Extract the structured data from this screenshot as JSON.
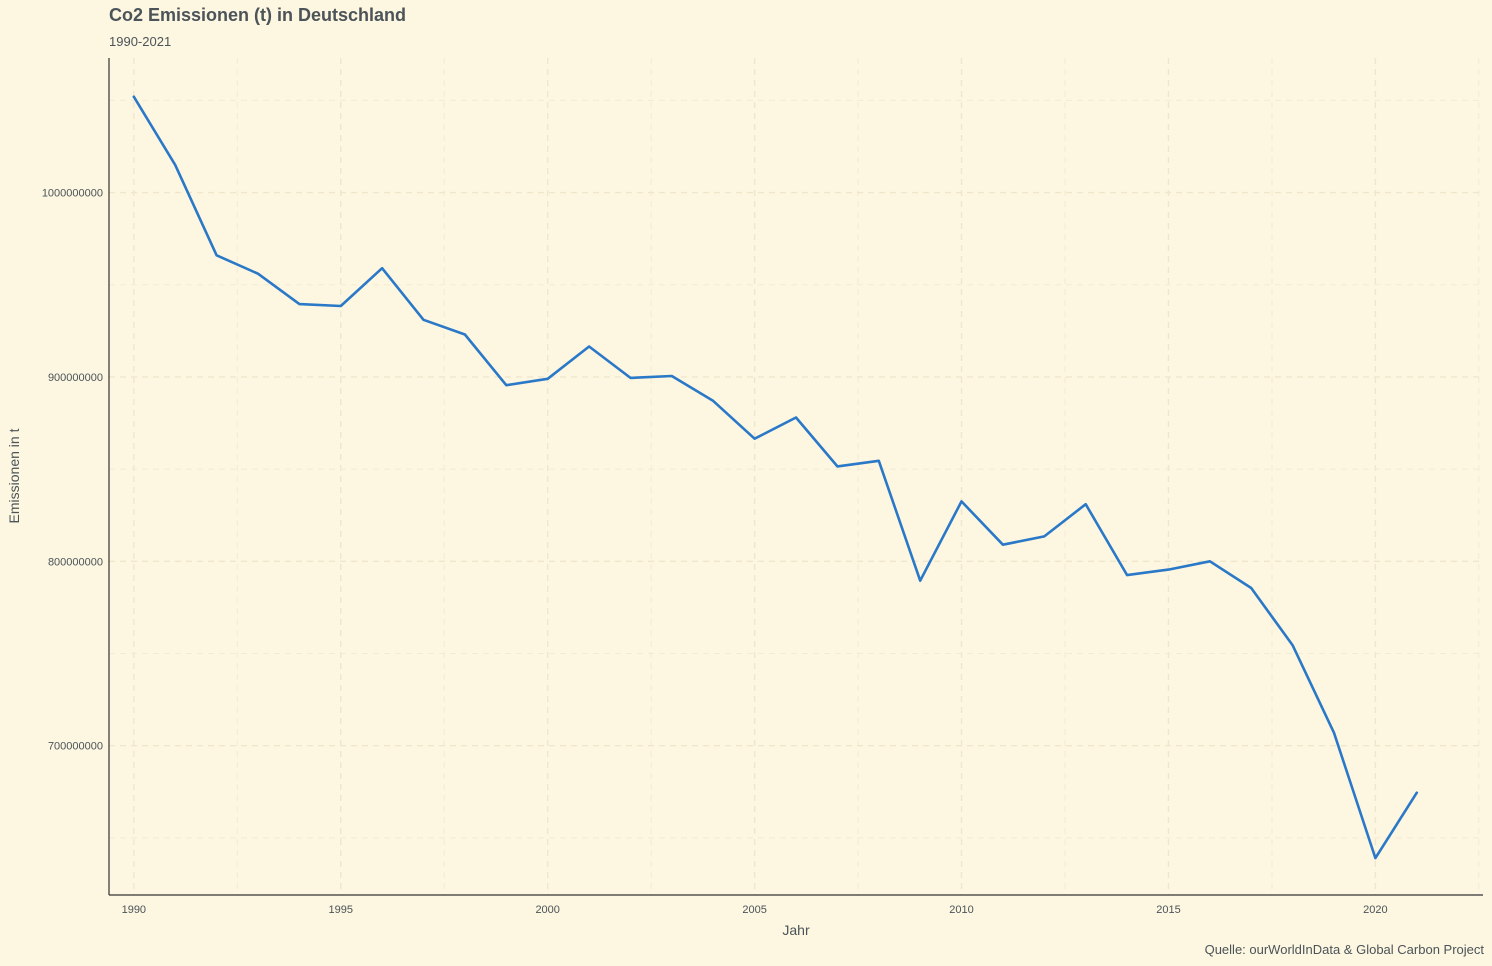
{
  "chart_data": {
    "type": "line",
    "title": "Co2 Emissionen (t) in Deutschland",
    "subtitle": "1990-2021",
    "caption": "Quelle: ourWorldInData & Global Carbon Project",
    "xlabel": "Jahr",
    "ylabel": "Emissionen in t",
    "xlim": [
      1989.4,
      2022.6
    ],
    "ylim": [
      619000000,
      1073000000
    ],
    "x_ticks": [
      1990,
      1995,
      2000,
      2005,
      2010,
      2015,
      2020
    ],
    "y_ticks": [
      700000000,
      800000000,
      900000000,
      1000000000
    ],
    "x_tick_labels": [
      "1990",
      "1995",
      "2000",
      "2005",
      "2010",
      "2015",
      "2020"
    ],
    "y_tick_labels": [
      "700000000",
      "800000000",
      "900000000",
      "1000000000"
    ],
    "grid": true,
    "series": [
      {
        "color": "#2a78c8",
        "x": [
          1990,
          1991,
          1992,
          1993,
          1994,
          1995,
          1996,
          1997,
          1998,
          1999,
          2000,
          2001,
          2002,
          2003,
          2004,
          2005,
          2006,
          2007,
          2008,
          2009,
          2010,
          2011,
          2012,
          2013,
          2014,
          2015,
          2016,
          2017,
          2018,
          2019,
          2020,
          2021
        ],
        "y": [
          1052000000,
          1015000000,
          966000000,
          956000000,
          939500000,
          938500000,
          959000000,
          931000000,
          923000000,
          895500000,
          899000000,
          916500000,
          899500000,
          900500000,
          887000000,
          866500000,
          878000000,
          851500000,
          854500000,
          789500000,
          832500000,
          809000000,
          813500000,
          831000000,
          792500000,
          795500000,
          800000000,
          785500000,
          754500000,
          707000000,
          639000000,
          674500000
        ]
      }
    ]
  }
}
